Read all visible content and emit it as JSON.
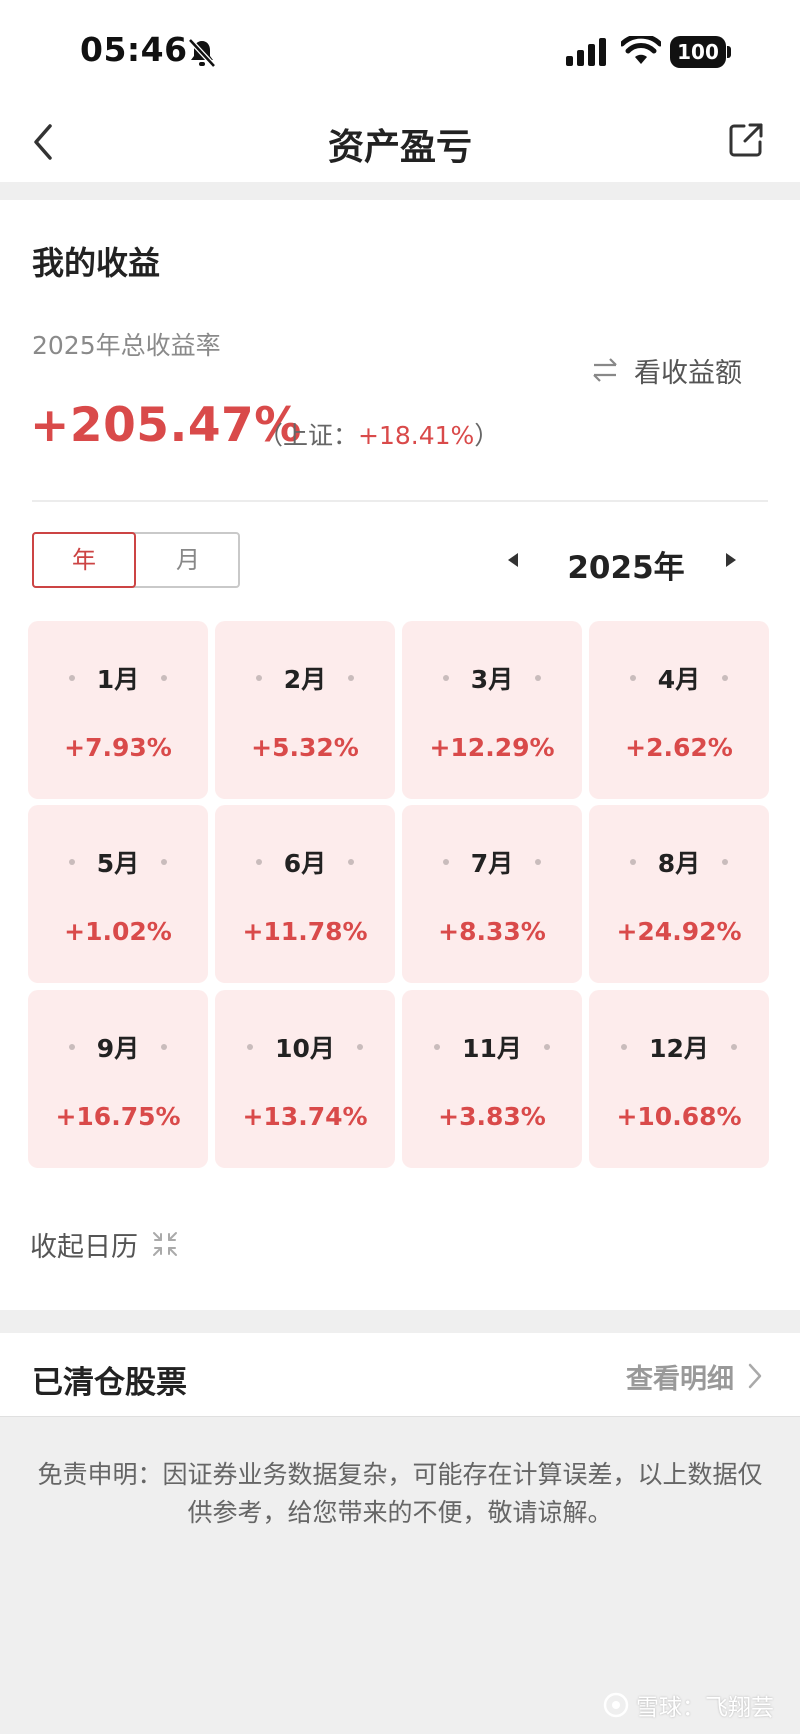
{
  "status_bar": {
    "time": "05:46",
    "battery": "100",
    "icons": [
      "bell-slash-icon",
      "cellular-signal-icon",
      "wifi-icon",
      "battery-icon"
    ]
  },
  "nav": {
    "title": "资产盈亏",
    "back_icon": "chevron-left-icon",
    "share_icon": "share-external-icon"
  },
  "earnings": {
    "section_title": "我的收益",
    "rate_label": "2025年总收益率",
    "toggle_label": "看收益额",
    "total_rate": "+205.47%",
    "benchmark_prefix": "（上证：",
    "benchmark_value": "+18.41%",
    "benchmark_suffix": "）"
  },
  "period": {
    "year_tab": "年",
    "month_tab": "月",
    "selected": "年",
    "current_year": "2025年"
  },
  "months": [
    {
      "month": "1月",
      "value": "+7.93%"
    },
    {
      "month": "2月",
      "value": "+5.32%"
    },
    {
      "month": "3月",
      "value": "+12.29%"
    },
    {
      "month": "4月",
      "value": "+2.62%"
    },
    {
      "month": "5月",
      "value": "+1.02%"
    },
    {
      "month": "6月",
      "value": "+11.78%"
    },
    {
      "month": "7月",
      "value": "+8.33%"
    },
    {
      "month": "8月",
      "value": "+24.92%"
    },
    {
      "month": "9月",
      "value": "+16.75%"
    },
    {
      "month": "10月",
      "value": "+13.74%"
    },
    {
      "month": "11月",
      "value": "+3.83%"
    },
    {
      "month": "12月",
      "value": "+10.68%"
    }
  ],
  "collapse_label": "收起日历",
  "cleared": {
    "title": "已清仓股票",
    "view_detail": "查看明细"
  },
  "disclaimer": "免责申明：因证券业务数据复杂，可能存在计算误差，以上数据仅供参考，给您带来的不便，敬请谅解。",
  "watermark": "雪球：飞翔芸",
  "colors": {
    "accent_red": "#d94a4a",
    "cell_bg": "#fdecec",
    "page_bg": "#efefef"
  }
}
